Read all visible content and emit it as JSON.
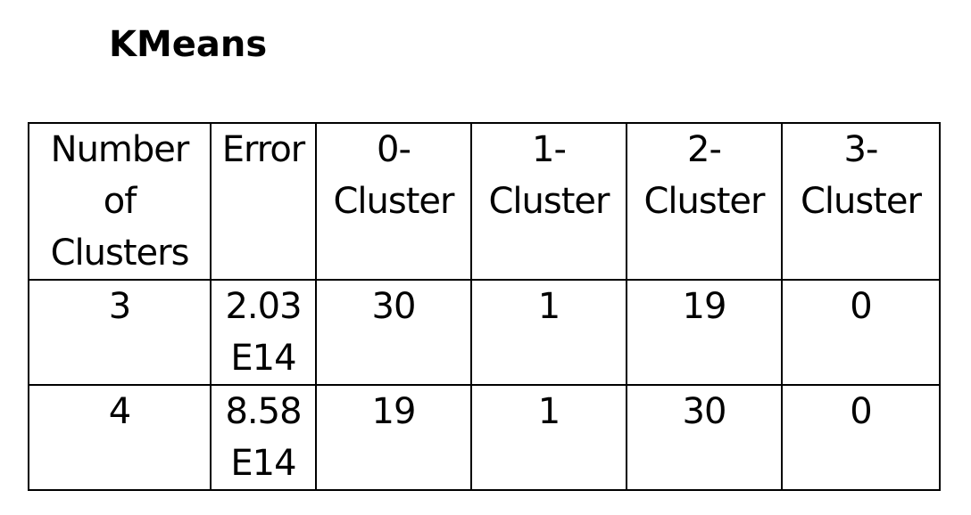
{
  "title": "KMeans",
  "table": {
    "headers": [
      "Number\nof\nClusters",
      "Error",
      "0-\nCluster",
      "1-\nCluster",
      "2-\nCluster",
      "3-\nCluster"
    ],
    "rows": [
      [
        "3",
        "2.03\nE14",
        "30",
        "1",
        "19",
        "0"
      ],
      [
        "4",
        "8.58\nE14",
        "19",
        "1",
        "30",
        "0"
      ]
    ]
  }
}
